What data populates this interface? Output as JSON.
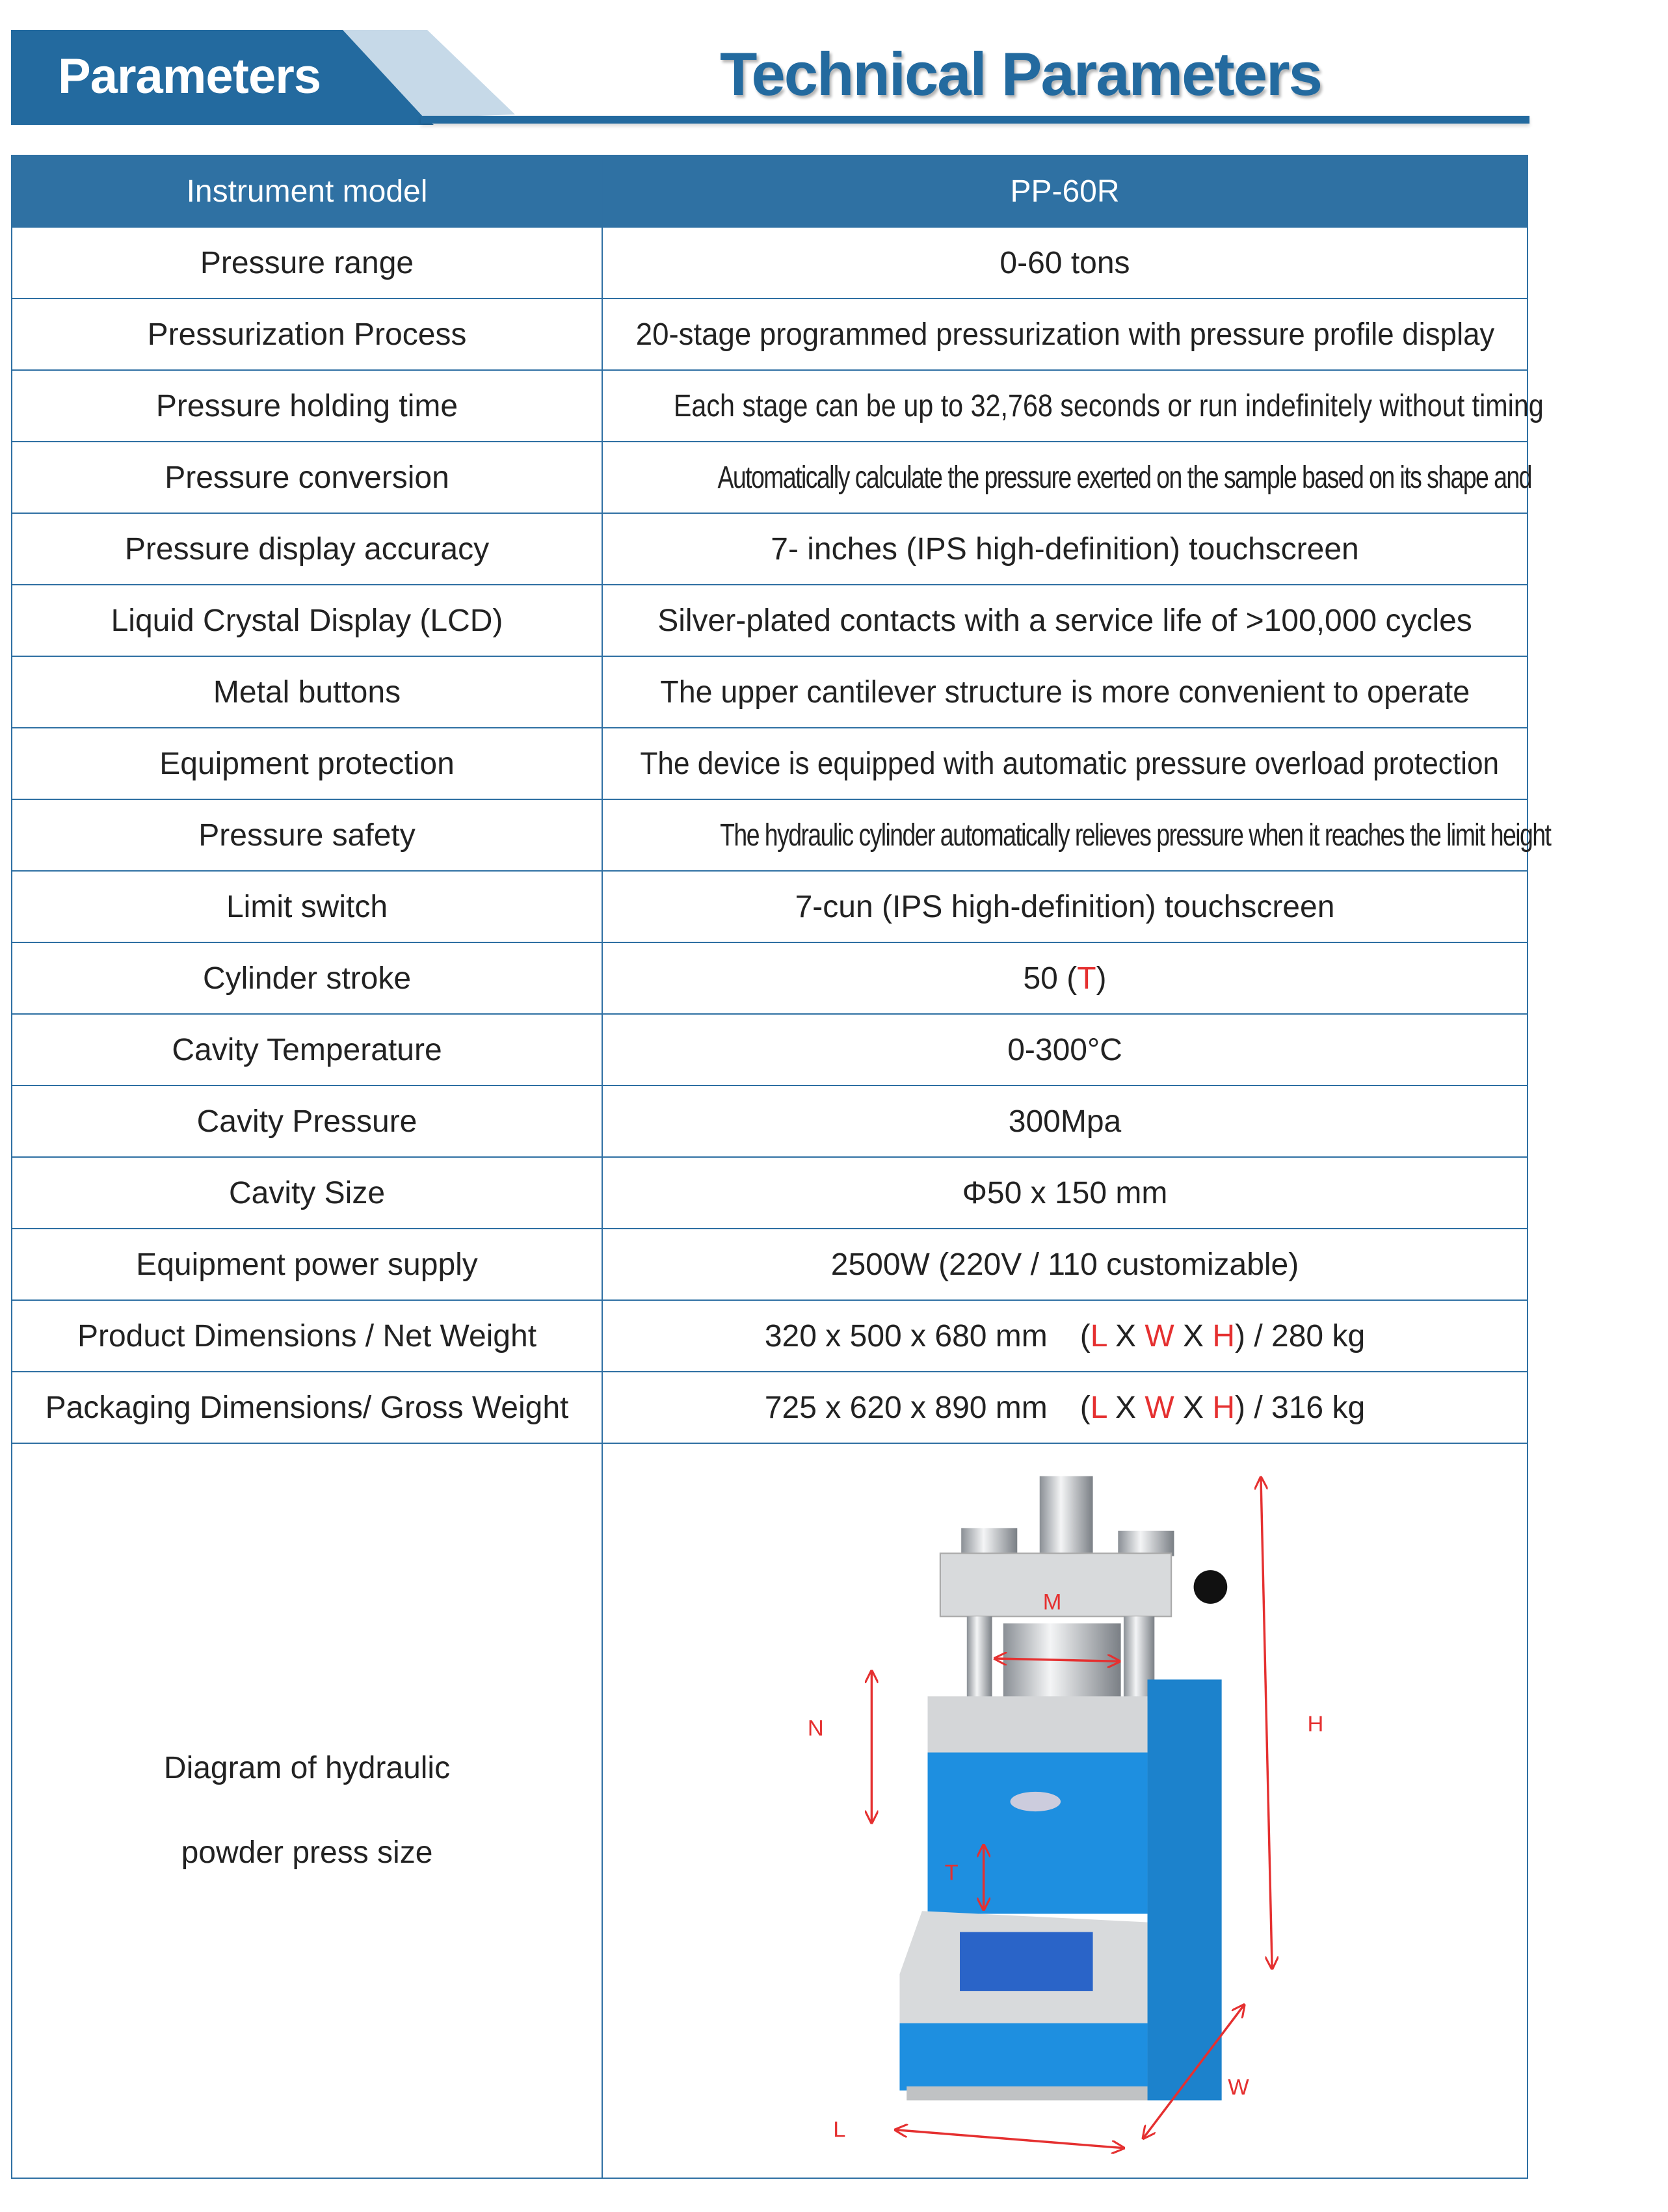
{
  "header": {
    "tab_label": "Parameters",
    "title": "Technical Parameters"
  },
  "table": {
    "header": [
      "Instrument model",
      "PP-60R"
    ],
    "rows": [
      [
        "Pressure range",
        "0-60 tons"
      ],
      [
        "Pressurization Process",
        "20-stage programmed pressurization with pressure profile display"
      ],
      [
        "Pressure holding time",
        "Each stage can be up to 32,768 seconds or run indefinitely without timing"
      ],
      [
        "Pressure conversion",
        "Automatically calculate the pressure exerted on the sample based on its shape and"
      ],
      [
        "Pressure display accuracy",
        "7- inches (IPS high-definition) touchscreen"
      ],
      [
        "Liquid Crystal Display (LCD)",
        "Silver-plated contacts with a service life of >100,000 cycles"
      ],
      [
        "Metal buttons",
        "The upper cantilever structure is more convenient to operate"
      ],
      [
        "Equipment protection",
        "The device is equipped with automatic pressure overload protection"
      ],
      [
        "Pressure safety",
        "The hydraulic cylinder automatically relieves pressure when it reaches the limit height"
      ],
      [
        "Limit switch",
        "7-cun (IPS high-definition) touchscreen"
      ],
      [
        "Cylinder stroke",
        "50 (T)"
      ],
      [
        "Cavity Temperature",
        "0-300°C"
      ],
      [
        "Cavity Pressure",
        "300Mpa"
      ],
      [
        "Cavity Size",
        "Φ50 x 150 mm"
      ],
      [
        "Equipment power supply",
        "2500W (220V / 110 customizable)"
      ],
      [
        "Product Dimensions / Net Weight",
        "320 x 500 x 680 mm    (L X W X H) / 280 kg"
      ],
      [
        "Packaging Dimensions/ Gross Weight",
        "725 x 620 x 890 mm    (L X W X H) / 316 kg"
      ]
    ],
    "stroke": {
      "value": "50 (",
      "letter": "T",
      "close": ")"
    },
    "dims": [
      {
        "size": "320 x 500 x 680 mm",
        "weight": ") / 280 kg"
      },
      {
        "size": "725 x 620 x 890 mm",
        "weight": ") / 316 kg"
      }
    ],
    "dim_letters": {
      "open": "(",
      "L": "L",
      "W": "W",
      "H": "H",
      "X": " X "
    },
    "diagram_label_1": "Diagram of hydraulic",
    "diagram_label_2": "powder press size"
  },
  "diagram": {
    "labels": {
      "M": "M",
      "N": "N",
      "H": "H",
      "T": "T",
      "W": "W",
      "L": "L"
    }
  },
  "colors": {
    "brand": "#236a9f",
    "header_row": "#2f71a3",
    "dimension_red": "#e53030",
    "machine_blue": "#1e8fe0"
  }
}
